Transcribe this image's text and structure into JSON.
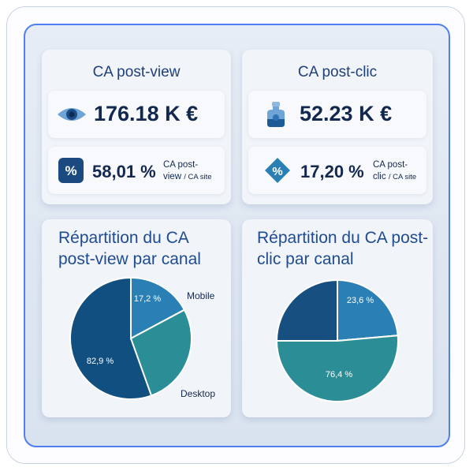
{
  "cards": {
    "postview": {
      "title": "CA post-view",
      "value": "176.18 K €",
      "pct": "58,01 %",
      "pct_label_line1": "CA post-",
      "pct_label_line2": "view",
      "pct_label_line2_small": "/ CA site",
      "icon": "eye-icon"
    },
    "postclic": {
      "title": "CA post-clic",
      "value": "52.23 K €",
      "pct": "17,20 %",
      "pct_label_line1": "CA post-",
      "pct_label_line2": "clic",
      "pct_label_line2_small": "/ CA site",
      "icon": "flask-icon"
    }
  },
  "percent_badge": "%",
  "charts": {
    "postview": {
      "title_line1": "Répartition du CA",
      "title_line2": "post-view par canal"
    },
    "postclic": {
      "title_line1": "Répartition du CA post-",
      "title_line2": "clic par canal"
    }
  },
  "chart_data": [
    {
      "type": "pie",
      "title": "Répartition du CA post-view par canal",
      "categories": [
        "Mobile",
        "Desktop"
      ],
      "values": [
        17.2,
        82.9
      ],
      "value_labels": [
        "17,2 %",
        "82,9 %"
      ],
      "colors": [
        "#2a7fb4",
        "#114f80",
        "#2b8e96"
      ],
      "outer_labels": [
        "Mobile",
        "Desktop"
      ]
    },
    {
      "type": "pie",
      "title": "Répartition du CA post-clic par canal",
      "categories": [
        "",
        ""
      ],
      "values": [
        23.6,
        76.4
      ],
      "value_labels": [
        "23,6 %",
        "76,4 %"
      ],
      "colors": [
        "#2a7fb4",
        "#2b8e96",
        "#164f80"
      ]
    }
  ]
}
